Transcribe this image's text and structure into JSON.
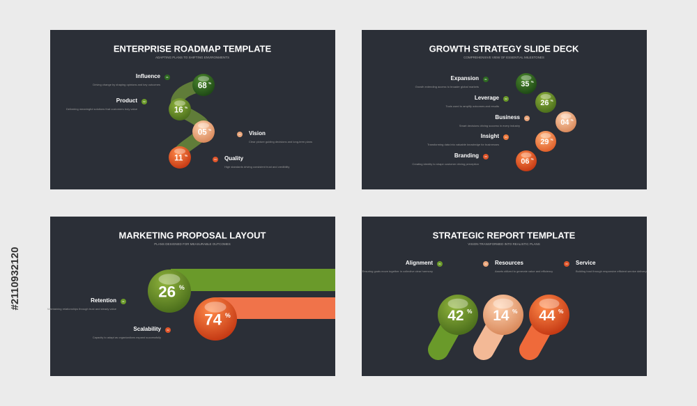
{
  "side_id": "#2110932120",
  "slides": [
    {
      "title": "ENTERPRISE ROADMAP TEMPLATE",
      "subtitle": "ADAPTING PLANS TO SHIFTING ENVIRONMENTS",
      "pct_sign": "%",
      "items": [
        {
          "label": "Influence",
          "badge": "01",
          "desc": "Driving change by shaping opinions and key outcomes",
          "value": "68"
        },
        {
          "label": "Product",
          "badge": "02",
          "desc": "Delivering meaningful solutions that customers truly value",
          "value": "16"
        },
        {
          "label": "Vision",
          "badge": "03",
          "desc": "Clear picture guiding decisions and long-term plans",
          "value": "05"
        },
        {
          "label": "Quality",
          "badge": "04",
          "desc": "High standards driving consistent trust and credibility",
          "value": "11"
        }
      ]
    },
    {
      "title": "GROWTH STRATEGY SLIDE DECK",
      "subtitle": "COMPREHENSIVE VIEW OF ESSENTIAL MILESTONES",
      "pct_sign": "%",
      "items": [
        {
          "label": "Expansion",
          "badge": "01",
          "desc": "Growth extending access to broader global markets",
          "value": "35"
        },
        {
          "label": "Leverage",
          "badge": "02",
          "desc": "Tools used to amplify outcomes and results",
          "value": "26"
        },
        {
          "label": "Business",
          "badge": "03",
          "desc": "Smart decisions driving success in every industry",
          "value": "04"
        },
        {
          "label": "Insight",
          "badge": "04",
          "desc": "Transforming data into valuable knowledge for businesses",
          "value": "29"
        },
        {
          "label": "Branding",
          "badge": "05",
          "desc": "Creating identity to shape customer driving perception",
          "value": "06"
        }
      ]
    },
    {
      "title": "MARKETING PROPOSAL LAYOUT",
      "subtitle": "PLANS DESIGNED FOR MEASURABLE OUTCOMES",
      "pct_sign": "%",
      "items": [
        {
          "label": "Retention",
          "badge": "01",
          "desc": "Maintaining relationships through trust and steady value",
          "value": "26"
        },
        {
          "label": "Scalability",
          "badge": "02",
          "desc": "Capacity to adapt as organizations expand successfully",
          "value": "74"
        }
      ]
    },
    {
      "title": "STRATEGIC REPORT TEMPLATE",
      "subtitle": "VISION TRANSFORMED INTO REALISTIC PLANS",
      "pct_sign": "%",
      "items": [
        {
          "label": "Alignment",
          "badge": "01",
          "desc": "Ensuring goals move together in collective clear harmony",
          "value": "42"
        },
        {
          "label": "Resources",
          "badge": "02",
          "desc": "Assets utilized to generate value and efficiency",
          "value": "14"
        },
        {
          "label": "Service",
          "badge": "03",
          "desc": "Building trust through responsive efficient service delivery",
          "value": "44"
        }
      ]
    }
  ]
}
